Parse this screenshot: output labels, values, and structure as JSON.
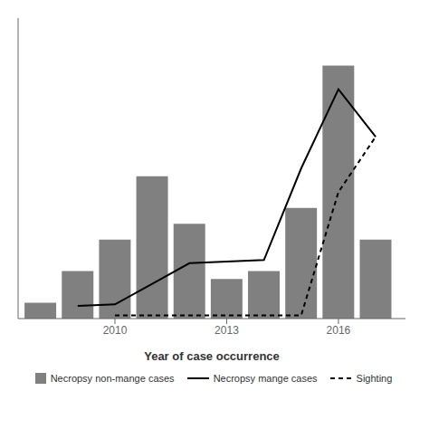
{
  "chart_data": {
    "type": "bar",
    "xlabel": "Year of case occurrence",
    "x": [
      2008,
      2009,
      2010,
      2011,
      2012,
      2013,
      2014,
      2015,
      2016,
      2017
    ],
    "series": [
      {
        "name": "Necropsy non-mange cases",
        "type": "bar",
        "color": "#808080",
        "values": [
          1,
          3,
          5,
          9,
          6,
          2.5,
          3,
          7,
          16,
          5
        ]
      },
      {
        "name": "Necropsy mange cases",
        "type": "line",
        "color": "#000000",
        "line_style": "solid",
        "values": [
          null,
          0.8,
          0.9,
          2.2,
          3.5,
          3.6,
          3.7,
          9.5,
          14.5,
          11.5
        ]
      },
      {
        "name": "Sighting",
        "type": "line",
        "color": "#000000",
        "line_style": "dashed",
        "values": [
          null,
          null,
          0.2,
          0.2,
          0.2,
          0.2,
          0.2,
          0.2,
          8.0,
          11.5
        ]
      }
    ],
    "xlim": [
      2007.4,
      2017.8
    ],
    "xticks": [
      2010,
      2013,
      2016
    ],
    "ylim": [
      0,
      19
    ],
    "tick_labels": "x",
    "grid": false,
    "legend": "bottom"
  }
}
